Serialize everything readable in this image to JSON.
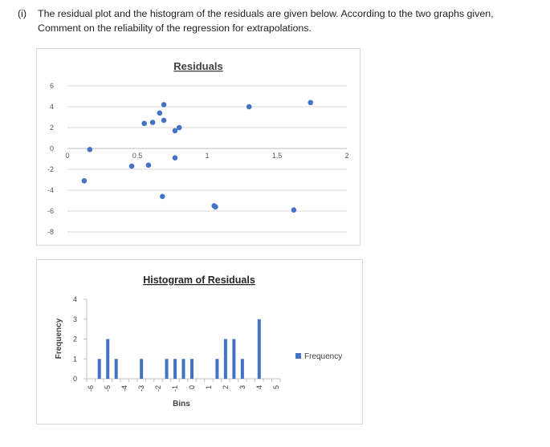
{
  "question": {
    "label": "(i)",
    "line1": "The residual plot and the histogram of the residuals are given below. According to the two graphs given,",
    "line2": "Comment on the reliability of the regression for extrapolations."
  },
  "chart_data": [
    {
      "type": "scatter",
      "title": "Residuals",
      "xlabel": "",
      "ylabel": "",
      "xlim": [
        0,
        2
      ],
      "ylim": [
        -8,
        6
      ],
      "x_ticks": [
        "0",
        "0.5",
        "1",
        "1.5",
        "2"
      ],
      "y_ticks": [
        "6",
        "4",
        "2",
        "0",
        "-2",
        "-4",
        "-6",
        "-8"
      ],
      "grid": true,
      "points": [
        {
          "x": 0.12,
          "y": -3.1
        },
        {
          "x": 0.16,
          "y": -0.1
        },
        {
          "x": 0.46,
          "y": -1.7
        },
        {
          "x": 0.55,
          "y": 2.4
        },
        {
          "x": 0.58,
          "y": -1.6
        },
        {
          "x": 0.61,
          "y": 2.5
        },
        {
          "x": 0.66,
          "y": 3.4
        },
        {
          "x": 0.68,
          "y": -4.6
        },
        {
          "x": 0.69,
          "y": 4.2
        },
        {
          "x": 0.69,
          "y": 2.7
        },
        {
          "x": 0.77,
          "y": 1.7
        },
        {
          "x": 0.77,
          "y": -0.9
        },
        {
          "x": 0.8,
          "y": 2.0
        },
        {
          "x": 1.05,
          "y": -5.5
        },
        {
          "x": 1.06,
          "y": -5.6
        },
        {
          "x": 1.3,
          "y": 4.0
        },
        {
          "x": 1.62,
          "y": -5.9
        },
        {
          "x": 1.74,
          "y": 4.4
        }
      ],
      "color": "#4472c4"
    },
    {
      "type": "bar",
      "title": "Histogram of Residuals",
      "xlabel": "Bins",
      "ylabel": "Frequency",
      "ylim": [
        0,
        4
      ],
      "y_ticks": [
        "0",
        "1",
        "2",
        "3",
        "4"
      ],
      "legend": {
        "label": "Frequency",
        "position": "right"
      },
      "color": "#4472c4",
      "categories": [
        "-6",
        "-5.5",
        "-5",
        "-4.5",
        "-4",
        "-3.5",
        "-3",
        "-2.5",
        "-2",
        "-1.5",
        "-1",
        "-0.5",
        "0",
        "0.5",
        "1",
        "1.5",
        "2",
        "2.5",
        "3",
        "3.5",
        "4",
        "4.5",
        "5"
      ],
      "labeled_ticks": [
        "-6",
        "-5",
        "-4",
        "-3",
        "-2",
        "-1",
        "0",
        "1",
        "2",
        "3",
        "4",
        "5"
      ],
      "values": [
        0,
        1,
        2,
        1,
        0,
        0,
        1,
        0,
        0,
        1,
        1,
        1,
        1,
        0,
        0,
        1,
        2,
        2,
        1,
        0,
        3,
        0,
        0
      ]
    }
  ]
}
